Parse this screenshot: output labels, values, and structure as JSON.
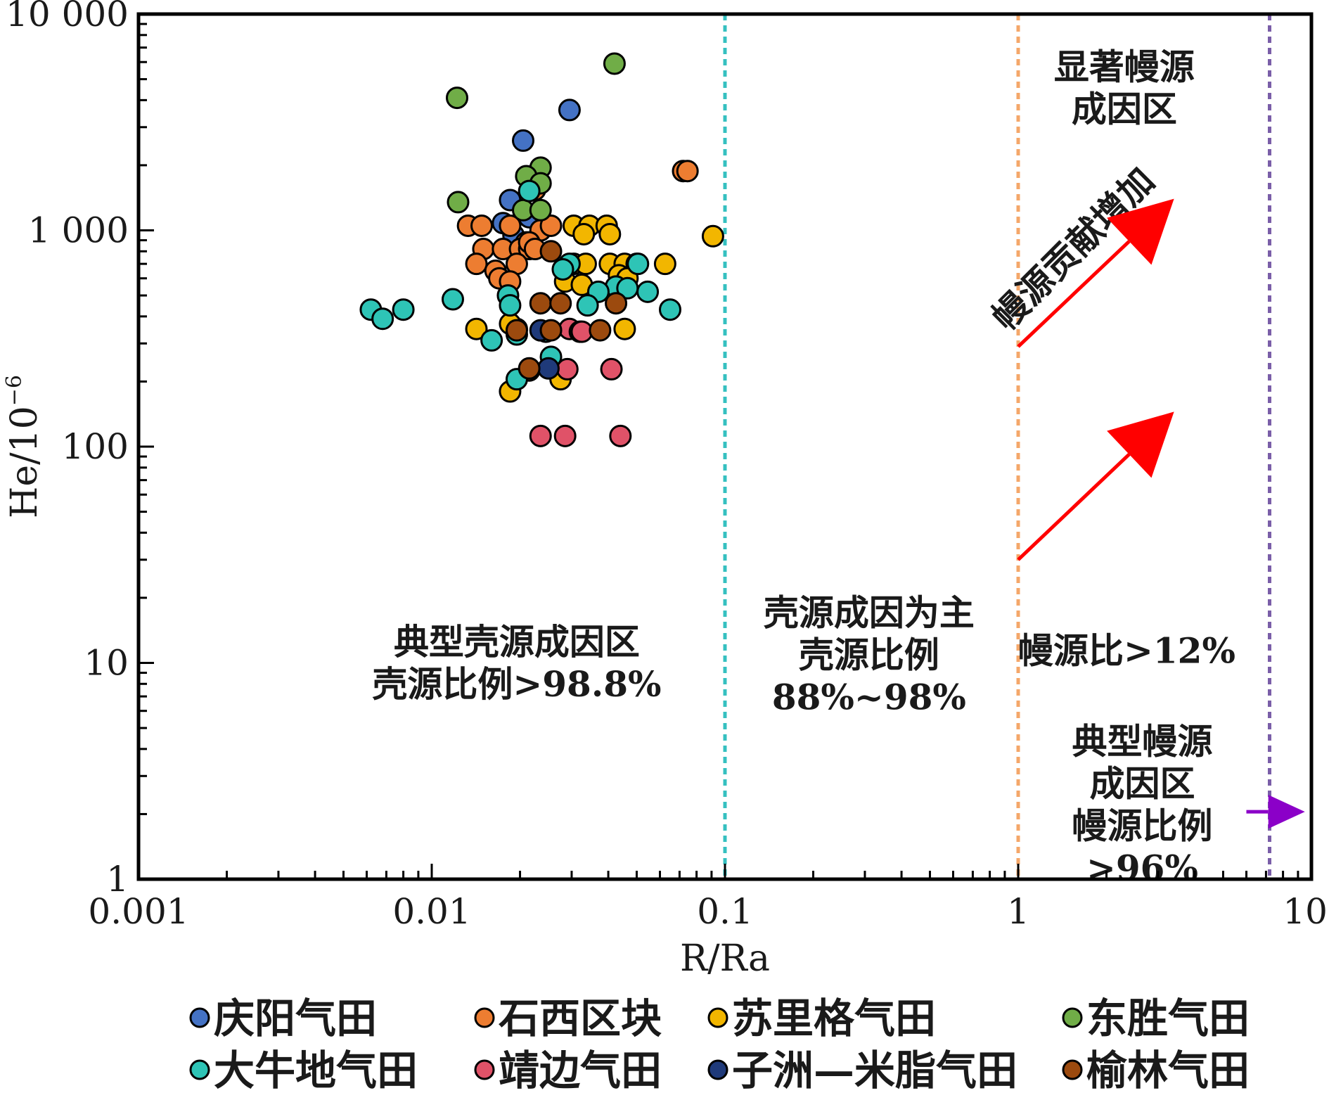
{
  "chart_data": {
    "type": "scatter",
    "xlabel": "R/Ra",
    "ylabel": "He/10",
    "ylabel_superscript": "−6",
    "x_scale": "log",
    "y_scale": "log",
    "xlim": [
      0.001,
      10
    ],
    "ylim": [
      1,
      10000
    ],
    "grid": false,
    "legend_position": "bottom",
    "x_ticks": [
      {
        "value": 0.001,
        "label": "0.001"
      },
      {
        "value": 0.01,
        "label": "0.01"
      },
      {
        "value": 0.1,
        "label": "0.1"
      },
      {
        "value": 1,
        "label": "1"
      },
      {
        "value": 10,
        "label": "10"
      }
    ],
    "y_ticks": [
      {
        "value": 1,
        "label": "1"
      },
      {
        "value": 10,
        "label": "10"
      },
      {
        "value": 100,
        "label": "100"
      },
      {
        "value": 1000,
        "label": "1 000"
      },
      {
        "value": 10000,
        "label": "10 000"
      }
    ],
    "reference_lines": [
      {
        "x": 0.1,
        "color": "#35c0c0"
      },
      {
        "x": 1,
        "color": "#f4a76a"
      },
      {
        "x": 7.2,
        "color": "#7a5ea8"
      }
    ],
    "annotations": [
      {
        "lines": [
          "显著幔源",
          "成因区"
        ],
        "x": 2.3,
        "y": 5000,
        "anchor": "middle"
      },
      {
        "lines": [
          "典型壳源成因区",
          "壳源比例>98.8%"
        ],
        "x": 0.0195,
        "y": 11,
        "anchor": "middle"
      },
      {
        "lines": [
          "壳源成因为主",
          "壳源比例",
          "88%~98%"
        ],
        "x": 0.31,
        "y": 15,
        "anchor": "middle"
      },
      {
        "lines": [
          "幔源比>12%"
        ],
        "x": 1.0,
        "y": 10,
        "anchor": "start"
      },
      {
        "lines": [
          "典型幔源",
          "成因区",
          "幔源比例",
          ">96%"
        ],
        "x": 2.65,
        "y": 3.8,
        "anchor": "middle"
      }
    ],
    "rotated_annotation": {
      "text": "幔源贡献增加",
      "x": 1.65,
      "y": 750,
      "angle": -45
    },
    "arrows": [
      {
        "from": [
          1.0,
          290
        ],
        "to": [
          3.4,
          1400
        ],
        "color": "#ff0000"
      },
      {
        "from": [
          1.0,
          30
        ],
        "to": [
          3.4,
          145
        ],
        "color": "#ff0000"
      },
      {
        "from": [
          6.0,
          2.05
        ],
        "to": [
          9.5,
          2.05
        ],
        "color": "#8b00c8"
      }
    ],
    "series": [
      {
        "name": "庆阳气田",
        "color": "#4472c4",
        "points": [
          [
            0.0205,
            2600
          ],
          [
            0.0295,
            3600
          ],
          [
            0.0185,
            1380
          ],
          [
            0.0175,
            1080
          ],
          [
            0.019,
            950
          ],
          [
            0.0215,
            1150
          ]
        ]
      },
      {
        "name": "石西区块",
        "color": "#ed7d31",
        "points": [
          [
            0.072,
            1880
          ],
          [
            0.0745,
            1880
          ],
          [
            0.0133,
            1050
          ],
          [
            0.0148,
            1050
          ],
          [
            0.0185,
            1050
          ],
          [
            0.0225,
            1540
          ],
          [
            0.0235,
            1000
          ],
          [
            0.0255,
            1050
          ],
          [
            0.021,
            880
          ],
          [
            0.015,
            820
          ],
          [
            0.0175,
            820
          ],
          [
            0.02,
            820
          ],
          [
            0.0215,
            820
          ],
          [
            0.0142,
            700
          ],
          [
            0.0165,
            650
          ],
          [
            0.0195,
            700
          ],
          [
            0.017,
            600
          ],
          [
            0.0185,
            580
          ],
          [
            0.0215,
            880
          ],
          [
            0.0225,
            820
          ]
        ]
      },
      {
        "name": "苏里格气田",
        "color": "#f2b600",
        "points": [
          [
            0.091,
            940
          ],
          [
            0.0305,
            1050
          ],
          [
            0.0345,
            1050
          ],
          [
            0.0395,
            1050
          ],
          [
            0.033,
            960
          ],
          [
            0.0405,
            960
          ],
          [
            0.0305,
            700
          ],
          [
            0.0335,
            700
          ],
          [
            0.0405,
            700
          ],
          [
            0.0455,
            700
          ],
          [
            0.05,
            700
          ],
          [
            0.0625,
            700
          ],
          [
            0.0285,
            580
          ],
          [
            0.0325,
            560
          ],
          [
            0.0435,
            620
          ],
          [
            0.0465,
            600
          ],
          [
            0.0142,
            350
          ],
          [
            0.0195,
            350
          ],
          [
            0.0455,
            350
          ],
          [
            0.0185,
            180
          ],
          [
            0.0215,
            225
          ],
          [
            0.0275,
            205
          ],
          [
            0.0185,
            370
          ]
        ]
      },
      {
        "name": "东胜气田",
        "color": "#70ad47",
        "points": [
          [
            0.042,
            5900
          ],
          [
            0.0122,
            4100
          ],
          [
            0.0123,
            1350
          ],
          [
            0.0235,
            1950
          ],
          [
            0.021,
            1780
          ],
          [
            0.0235,
            1650
          ],
          [
            0.0205,
            1240
          ],
          [
            0.0235,
            1240
          ]
        ]
      },
      {
        "name": "大牛地气田",
        "color": "#2ec4b6",
        "points": [
          [
            0.0062,
            430
          ],
          [
            0.0068,
            390
          ],
          [
            0.008,
            430
          ],
          [
            0.0118,
            480
          ],
          [
            0.0182,
            500
          ],
          [
            0.0185,
            450
          ],
          [
            0.0215,
            1520
          ],
          [
            0.0295,
            700
          ],
          [
            0.0505,
            700
          ],
          [
            0.0425,
            550
          ],
          [
            0.0545,
            520
          ],
          [
            0.037,
            520
          ],
          [
            0.034,
            450
          ],
          [
            0.0465,
            540
          ],
          [
            0.065,
            430
          ],
          [
            0.0245,
            340
          ],
          [
            0.016,
            310
          ],
          [
            0.0195,
            330
          ],
          [
            0.0255,
            260
          ],
          [
            0.0195,
            205
          ],
          [
            0.028,
            660
          ]
        ]
      },
      {
        "name": "靖边气田",
        "color": "#e05268",
        "points": [
          [
            0.0295,
            350
          ],
          [
            0.032,
            340
          ],
          [
            0.0325,
            340
          ],
          [
            0.029,
            228
          ],
          [
            0.041,
            228
          ],
          [
            0.0235,
            112
          ],
          [
            0.0285,
            112
          ],
          [
            0.044,
            112
          ]
        ]
      },
      {
        "name": "子洲—米脂气田",
        "color": "#1f3a7a",
        "points": [
          [
            0.0235,
            345
          ],
          [
            0.025,
            230
          ]
        ]
      },
      {
        "name": "榆林气田",
        "color": "#9c4a0e",
        "points": [
          [
            0.0255,
            800
          ],
          [
            0.0235,
            460
          ],
          [
            0.0275,
            460
          ],
          [
            0.0425,
            460
          ],
          [
            0.0195,
            345
          ],
          [
            0.0255,
            345
          ],
          [
            0.0375,
            345
          ],
          [
            0.0215,
            230
          ]
        ]
      }
    ]
  }
}
